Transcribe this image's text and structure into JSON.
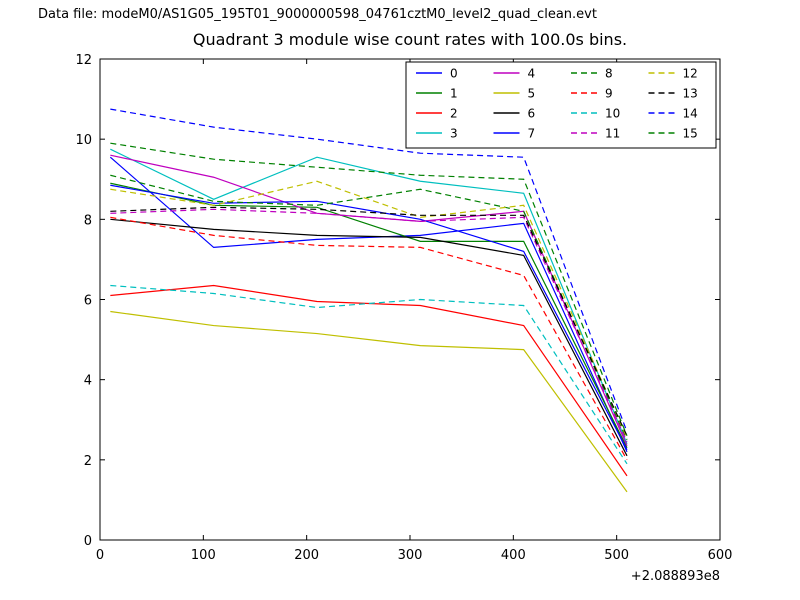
{
  "header": {
    "data_file_label": "Data file: modeM0/AS1G05_195T01_9000000598_04761cztM0_level2_quad_clean.evt"
  },
  "chart_data": {
    "type": "line",
    "title": "Quadrant 3 module wise count rates with 100.0s bins.",
    "xlabel": "",
    "ylabel": "",
    "xlim": [
      0,
      600
    ],
    "ylim": [
      0,
      12
    ],
    "x_ticks": [
      0,
      100,
      200,
      300,
      400,
      500,
      600
    ],
    "y_ticks": [
      0,
      2,
      4,
      6,
      8,
      10,
      12
    ],
    "x_offset_label": "+2.088893e8",
    "grid": false,
    "legend_position": "upper center, inside axes, 4 columns",
    "x": [
      10,
      110,
      210,
      310,
      410,
      510
    ],
    "series": [
      {
        "name": "0",
        "color": "#0000ff",
        "style": "solid",
        "values": [
          9.55,
          7.3,
          7.5,
          7.6,
          7.9,
          2.2
        ]
      },
      {
        "name": "1",
        "color": "#008000",
        "style": "solid",
        "values": [
          8.9,
          8.35,
          8.3,
          7.45,
          7.45,
          2.3
        ]
      },
      {
        "name": "2",
        "color": "#ff0000",
        "style": "solid",
        "values": [
          6.1,
          6.35,
          5.95,
          5.85,
          5.35,
          1.6
        ]
      },
      {
        "name": "3",
        "color": "#00bfbf",
        "style": "solid",
        "values": [
          9.75,
          8.5,
          9.55,
          8.95,
          8.65,
          2.4
        ]
      },
      {
        "name": "4",
        "color": "#bf00bf",
        "style": "solid",
        "values": [
          9.6,
          9.05,
          8.15,
          7.95,
          8.2,
          2.35
        ]
      },
      {
        "name": "5",
        "color": "#bfbf00",
        "style": "solid",
        "values": [
          5.7,
          5.35,
          5.15,
          4.85,
          4.75,
          1.2
        ]
      },
      {
        "name": "6",
        "color": "#000000",
        "style": "solid",
        "values": [
          8.0,
          7.75,
          7.6,
          7.55,
          7.1,
          2.1
        ]
      },
      {
        "name": "7",
        "color": "#0000ff",
        "style": "solid",
        "values": [
          8.85,
          8.4,
          8.45,
          8.0,
          7.2,
          2.25
        ]
      },
      {
        "name": "8",
        "color": "#008000",
        "style": "dashed",
        "values": [
          9.1,
          8.45,
          8.35,
          8.75,
          8.2,
          2.5
        ]
      },
      {
        "name": "9",
        "color": "#ff0000",
        "style": "dashed",
        "values": [
          8.05,
          7.6,
          7.35,
          7.3,
          6.6,
          2.0
        ]
      },
      {
        "name": "10",
        "color": "#00bfbf",
        "style": "dashed",
        "values": [
          6.35,
          6.15,
          5.8,
          6.0,
          5.85,
          1.9
        ]
      },
      {
        "name": "11",
        "color": "#bf00bf",
        "style": "dashed",
        "values": [
          8.15,
          8.25,
          8.15,
          7.95,
          8.05,
          2.45
        ]
      },
      {
        "name": "12",
        "color": "#bfbf00",
        "style": "dashed",
        "values": [
          8.75,
          8.35,
          8.95,
          8.05,
          8.35,
          2.55
        ]
      },
      {
        "name": "13",
        "color": "#000000",
        "style": "dashed",
        "values": [
          8.2,
          8.3,
          8.25,
          8.1,
          8.1,
          2.6
        ]
      },
      {
        "name": "14",
        "color": "#0000ff",
        "style": "dashed",
        "values": [
          10.75,
          10.3,
          10.0,
          9.65,
          9.55,
          2.7
        ]
      },
      {
        "name": "15",
        "color": "#008000",
        "style": "dashed",
        "values": [
          9.9,
          9.5,
          9.3,
          9.1,
          9.0,
          2.6
        ]
      }
    ]
  }
}
